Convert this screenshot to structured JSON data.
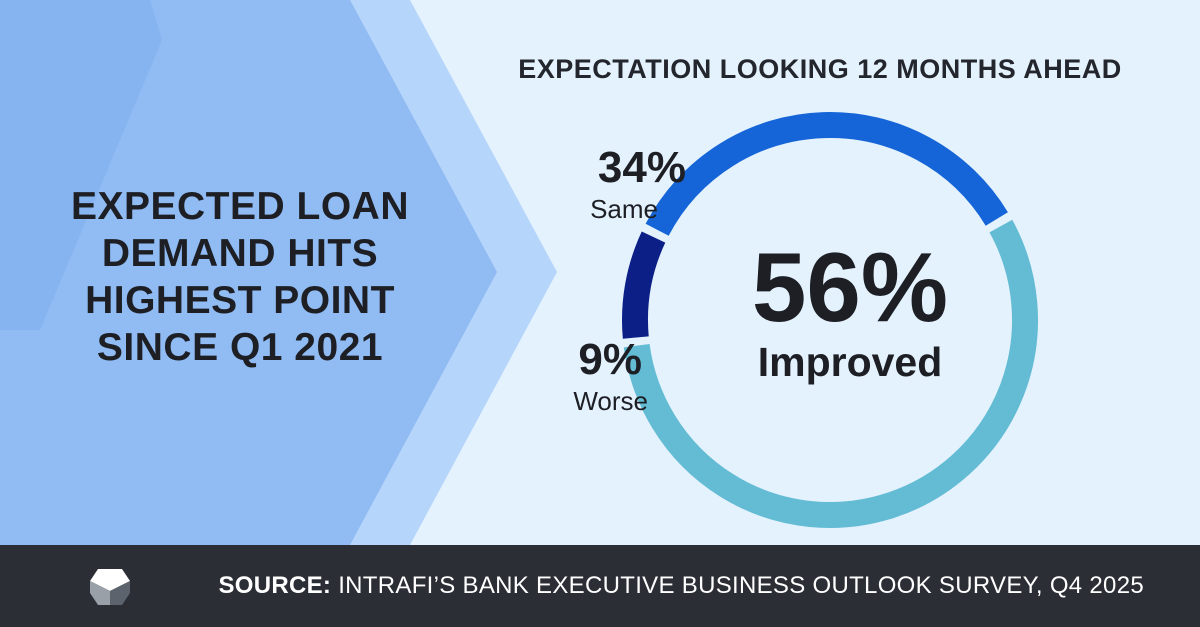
{
  "headline": {
    "line1": "EXPECTED LOAN",
    "line2": "DEMAND HITS",
    "line3": "HIGHEST POINT",
    "line4": "SINCE Q1 2021"
  },
  "chart_data": {
    "type": "pie",
    "variant": "donut",
    "title": "EXPECTATION LOOKING 12 MONTHS AHEAD",
    "slices": [
      {
        "label": "Improved",
        "value": 56,
        "display": "56%",
        "color": "#63bcd4"
      },
      {
        "label": "Worse",
        "value": 9,
        "display": "9%",
        "color": "#0b1f87"
      },
      {
        "label": "Same",
        "value": 34,
        "display": "34%",
        "color": "#1565d8"
      }
    ]
  },
  "footer": {
    "source_label": "SOURCE:",
    "source_text": " INTRAFI’S BANK EXECUTIVE BUSINESS OUTLOOK SURVEY, Q4 2025",
    "logo_icon": "intrafi-cube-logo-icon"
  },
  "colors": {
    "background": "#e4f2fd",
    "panel_dark": "#8fbaf2",
    "panel_light": "#b5d5fb",
    "footer": "#2b2e35"
  }
}
